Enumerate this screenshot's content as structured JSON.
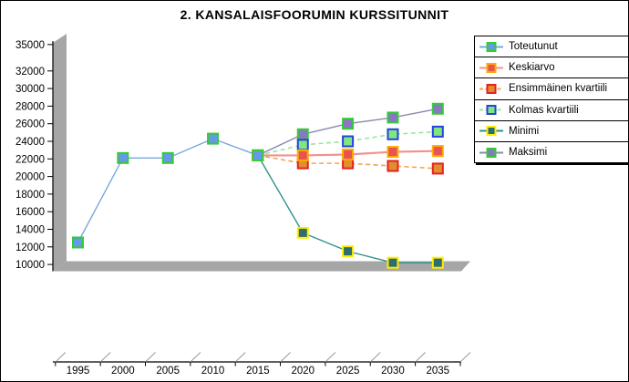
{
  "title": "2. KANSALAISFOORUMIN KURSSITUNNIT",
  "chart_data": {
    "type": "line",
    "title": "2. KANSALAISFOORUMIN KURSSITUNNIT",
    "categories": [
      "1995",
      "2000",
      "2005",
      "2010",
      "2015",
      "2020",
      "2025",
      "2030",
      "2035"
    ],
    "y_ticks": [
      35000,
      32000,
      30000,
      28000,
      26000,
      24000,
      22000,
      20000,
      18000,
      16000,
      14000,
      12000,
      10000
    ],
    "ylim": [
      10000,
      35000
    ],
    "xlabel": "",
    "ylabel": "",
    "grid": false,
    "legend_position": "right",
    "background_3d_color": "#a6a6a6",
    "series": [
      {
        "name": "Toteutunut",
        "x": [
          1995,
          2000,
          2005,
          2010,
          2015
        ],
        "values": [
          12500,
          22100,
          22100,
          24300,
          22400
        ],
        "line_color": "#74a9dc",
        "line_style": "solid",
        "line_width": 1.4,
        "marker_fill": "#6699e6",
        "marker_border": "#33cc33"
      },
      {
        "name": "Keskiarvo",
        "x": [
          2015,
          2020,
          2025,
          2030,
          2035
        ],
        "values": [
          22400,
          22400,
          22500,
          22800,
          22900
        ],
        "line_color": "#f29191",
        "line_style": "solid",
        "line_width": 2.2,
        "marker_fill": "#e85252",
        "marker_border": "#ffaa00"
      },
      {
        "name": "Ensimmäinen kvartiili",
        "x": [
          2015,
          2020,
          2025,
          2030,
          2035
        ],
        "values": [
          22400,
          21500,
          21500,
          21200,
          20900
        ],
        "line_color": "#f2a54d",
        "line_style": "dashed",
        "line_width": 1.6,
        "marker_fill": "#e08f2e",
        "marker_border": "#e62020"
      },
      {
        "name": "Kolmas kvartiili",
        "x": [
          2015,
          2020,
          2025,
          2030,
          2035
        ],
        "values": [
          22400,
          23600,
          24000,
          24800,
          25100
        ],
        "line_color": "#99e699",
        "line_style": "dashed",
        "line_width": 1.6,
        "marker_fill": "#80e680",
        "marker_border": "#2244dd"
      },
      {
        "name": "Minimi",
        "x": [
          2015,
          2020,
          2025,
          2030,
          2035
        ],
        "values": [
          22400,
          13600,
          11500,
          10200,
          10200
        ],
        "line_color": "#2e8f8f",
        "line_style": "solid",
        "line_width": 1.4,
        "marker_fill": "#2e6e6e",
        "marker_border": "#ffee00"
      },
      {
        "name": "Maksimi",
        "x": [
          2015,
          2020,
          2025,
          2030,
          2035
        ],
        "values": [
          22400,
          24800,
          26000,
          26700,
          27700
        ],
        "line_color": "#8989b3",
        "line_style": "solid",
        "line_width": 1.4,
        "marker_fill": "#8878c4",
        "marker_border": "#33cc33"
      }
    ]
  }
}
